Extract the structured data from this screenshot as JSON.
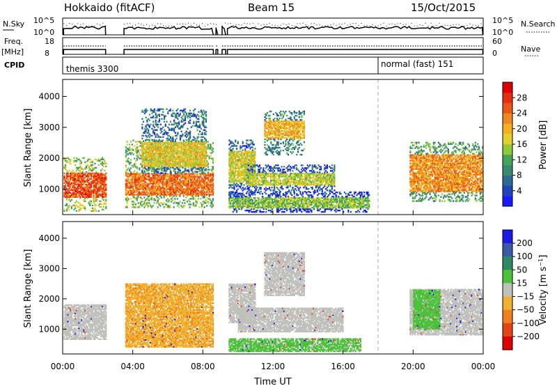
{
  "header": {
    "site": "Hokkaido (fitACF)",
    "beam": "Beam 15",
    "date": "15/Oct/2015"
  },
  "strip_labels": {
    "nsky": "N.Sky",
    "nsearch": "N.Search",
    "freq_top": "Freq.",
    "freq_unit": "[MHz]",
    "nave": "Nave",
    "cpid": "CPID",
    "noise_ticks_left": [
      "10^5",
      "10^0"
    ],
    "noise_ticks_right": [
      "10^5",
      "10^0"
    ],
    "freq_ticks": [
      "18",
      "8"
    ],
    "nave_ticks": [
      "60",
      "0"
    ]
  },
  "cpid_programs": [
    {
      "name": "themis 3300",
      "start_hour": 0,
      "end_hour": 18
    },
    {
      "name": "normal (fast) 151",
      "start_hour": 18,
      "end_hour": 24
    }
  ],
  "chart_data": [
    {
      "type": "heatmap",
      "panel": "power",
      "ylabel": "Slant Range [km]",
      "ylim": [
        180,
        4550
      ],
      "yticks": [
        1000,
        2000,
        3000,
        4000
      ],
      "xlim": [
        0,
        24
      ],
      "colorbar": {
        "label": "Power [dB]",
        "ticks": [
          4,
          8,
          12,
          16,
          20,
          24,
          28
        ],
        "range": [
          0,
          32
        ],
        "colors": [
          "#1a1aff",
          "#2244bb",
          "#2d6a91",
          "#3a8a70",
          "#44a458",
          "#90c83c",
          "#e0d030",
          "#f2b022",
          "#ee8820",
          "#ea5818",
          "#e42e12",
          "#dd0000"
        ]
      },
      "gaps_hours": [
        [
          2.5,
          3.5
        ],
        [
          8.6,
          8.75
        ],
        [
          8.85,
          9.1
        ],
        [
          9.3,
          9.4
        ]
      ],
      "echo_regions": [
        {
          "t0": 0.05,
          "t1": 2.45,
          "r0": 280,
          "r1": 2000,
          "core_r0": 700,
          "core_r1": 1500,
          "power_db": 26
        },
        {
          "t0": 3.5,
          "t1": 8.6,
          "r0": 400,
          "r1": 2600,
          "core_r0": 800,
          "core_r1": 1500,
          "power_db": 24
        },
        {
          "t0": 4.5,
          "t1": 8.2,
          "r0": 1500,
          "r1": 3600,
          "core_r0": 1700,
          "core_r1": 2500,
          "power_db": 18
        },
        {
          "t0": 9.4,
          "t1": 11.0,
          "r0": 400,
          "r1": 2600,
          "core_r0": 1200,
          "core_r1": 2200,
          "power_db": 17
        },
        {
          "t0": 11.5,
          "t1": 13.8,
          "r0": 2100,
          "r1": 3500,
          "core_r0": 2600,
          "core_r1": 3200,
          "power_db": 20
        },
        {
          "t0": 10.5,
          "t1": 15.5,
          "r0": 900,
          "r1": 1800,
          "core_r0": 1100,
          "core_r1": 1500,
          "power_db": 16
        },
        {
          "t0": 9.4,
          "t1": 17.5,
          "r0": 250,
          "r1": 900,
          "core_r0": 350,
          "core_r1": 700,
          "power_db": 14
        },
        {
          "t0": 19.8,
          "t1": 24.0,
          "r0": 600,
          "r1": 2500,
          "core_r0": 900,
          "core_r1": 2100,
          "power_db": 22
        }
      ]
    },
    {
      "type": "heatmap",
      "panel": "velocity",
      "ylabel": "Slant Range [km]",
      "ylim": [
        180,
        4550
      ],
      "yticks": [
        1000,
        2000,
        3000,
        4000
      ],
      "xlim": [
        0,
        24
      ],
      "xticks": [
        "00:00",
        "04:00",
        "08:00",
        "12:00",
        "16:00",
        "20:00",
        "00:00"
      ],
      "xtick_hours": [
        0,
        4,
        8,
        12,
        16,
        20,
        24
      ],
      "xlabel": "Time UT",
      "colorbar": {
        "label": "Velocity [m s^-1]",
        "ticks": [
          "200",
          "100",
          "50",
          "15",
          "-15",
          "-50",
          "-100",
          "-200"
        ],
        "colors": [
          "#1b1be6",
          "#3a5aa8",
          "#2e8a62",
          "#4cc23a",
          "#c0c0bc",
          "#f0b030",
          "#ee8020",
          "#e54516",
          "#dd0000"
        ]
      },
      "ground_scatter_color": "#c0c0bc",
      "echo_regions": [
        {
          "t0": 0.05,
          "t1": 2.45,
          "r0": 650,
          "r1": 1800,
          "velocity": 0
        },
        {
          "t0": 3.5,
          "t1": 8.6,
          "r0": 400,
          "r1": 2500,
          "velocity": -40
        },
        {
          "t0": 9.4,
          "t1": 11.0,
          "r0": 1200,
          "r1": 2500,
          "velocity": 0
        },
        {
          "t0": 11.5,
          "t1": 13.8,
          "r0": 2100,
          "r1": 3500,
          "velocity": 0
        },
        {
          "t0": 10.0,
          "t1": 16.0,
          "r0": 900,
          "r1": 1700,
          "velocity": 0
        },
        {
          "t0": 9.4,
          "t1": 17.0,
          "r0": 250,
          "r1": 700,
          "velocity": 25
        },
        {
          "t0": 19.8,
          "t1": 24.0,
          "r0": 800,
          "r1": 2300,
          "velocity": 0
        },
        {
          "t0": 20.0,
          "t1": 21.5,
          "r0": 1000,
          "r1": 2300,
          "velocity": 30
        }
      ]
    }
  ]
}
